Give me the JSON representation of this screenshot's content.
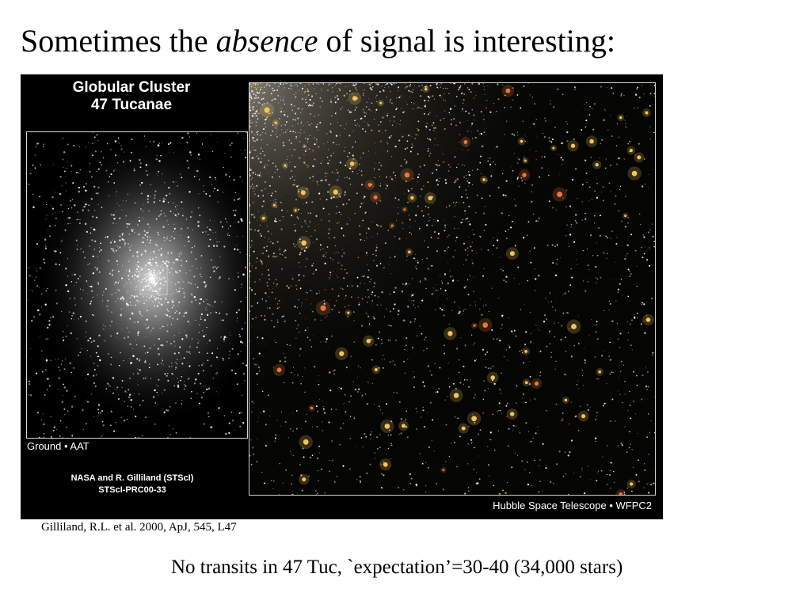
{
  "slide": {
    "title_prefix": "Sometimes the",
    "title_emphasis": "absence",
    "title_suffix": "of signal is interesting:",
    "citation": "Gilliland, R.L. et al. 2000, ApJ, 545, L47",
    "conclusion": "No transits in 47 Tuc, `expectation’=30-40 (34,000 stars)"
  },
  "figure": {
    "title_line1": "Globular Cluster",
    "title_line2": "47 Tucanae",
    "ground_label": "Ground • AAT",
    "credit_line1": "NASA and R. Gilliland (STScI)",
    "credit_line2": "STScI-PRC00-33",
    "hubble_label": "Hubble Space Telescope • WFPC2"
  },
  "colors": {
    "figure_background": "#000000",
    "star_white": "#ffffff",
    "star_gold": "#f2c45a",
    "star_orange": "#e8783a",
    "panel_border": "#d8d8d8"
  }
}
